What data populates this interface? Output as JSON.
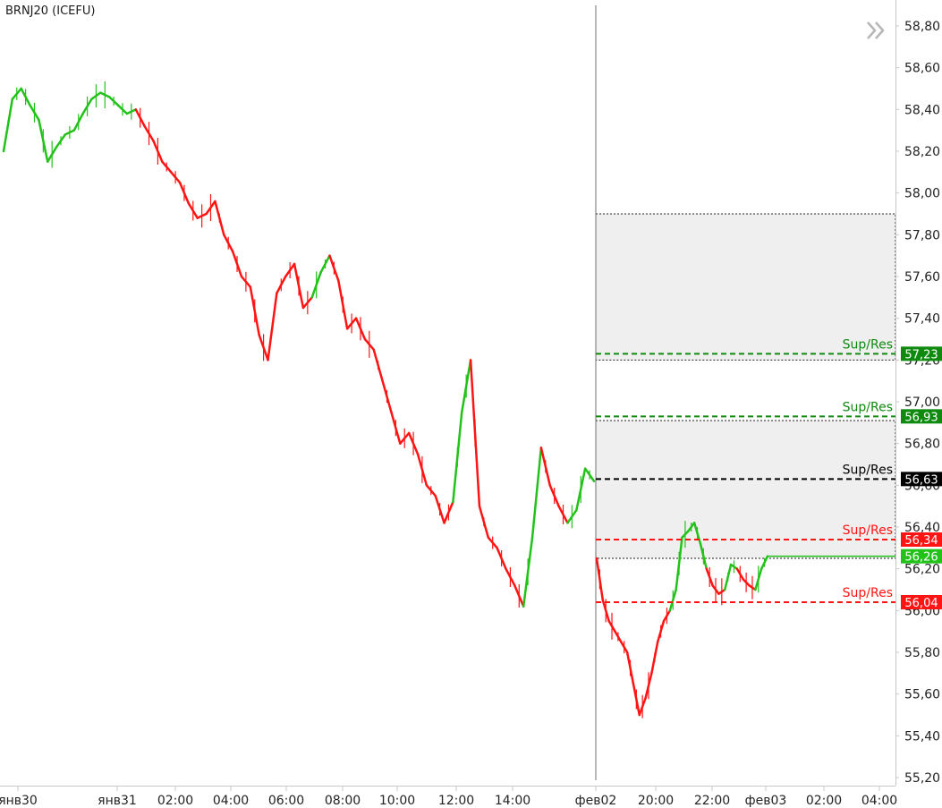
{
  "symbol": "BRNJ20 (ICEFU)",
  "chart_data": {
    "type": "line",
    "title": "BRNJ20 (ICEFU)",
    "xlabel": "",
    "ylabel": "",
    "ylim": [
      55.2,
      58.8
    ],
    "y_ticks": [
      "58,80",
      "58,60",
      "58,40",
      "58,20",
      "58,00",
      "57,80",
      "57,60",
      "57,40",
      "57,20",
      "57,00",
      "56,80",
      "56,60",
      "56,40",
      "56,20",
      "56,00",
      "55,80",
      "55,60",
      "55,40",
      "55,20"
    ],
    "x_ticks": [
      "янв30",
      "янв31",
      "02:00",
      "04:00",
      "06:00",
      "08:00",
      "10:00",
      "12:00",
      "14:00",
      "фев02",
      "20:00",
      "22:00",
      "фев03",
      "02:00",
      "04:00"
    ],
    "series": [
      {
        "values": [
          58.2,
          58.45,
          58.5,
          58.42,
          58.35,
          58.15,
          58.22,
          58.28,
          58.3,
          58.38,
          58.45,
          58.48,
          58.46,
          58.42,
          58.38,
          58.4,
          58.32,
          58.25,
          58.15,
          58.1,
          58.05,
          57.95,
          57.88,
          57.9,
          57.96,
          57.8,
          57.72,
          57.6,
          57.55,
          57.32,
          57.2,
          57.52,
          57.6,
          57.66,
          57.45,
          57.5,
          57.62,
          57.7,
          57.58,
          57.35,
          57.4,
          57.3,
          57.25,
          57.1,
          56.95,
          56.8,
          56.85,
          56.75,
          56.6,
          56.55,
          56.42,
          56.52,
          56.95,
          57.2,
          56.5,
          56.35,
          56.3,
          56.2,
          56.12,
          56.02,
          56.35,
          56.78,
          56.6,
          56.5,
          56.42,
          56.48,
          56.68,
          56.62
        ],
        "colors": [
          "#22c21a",
          "#22c21a",
          "#22c21a",
          "#22c21a",
          "#22c21a",
          "#22c21a",
          "#22c21a",
          "#22c21a",
          "#22c21a",
          "#22c21a",
          "#22c21a",
          "#22c21a",
          "#22c21a",
          "#22c21a",
          "#22c21a",
          "#22c21a",
          "#ff1414",
          "#ff1414",
          "#ff1414",
          "#ff1414",
          "#ff1414",
          "#ff1414",
          "#ff1414",
          "#ff1414",
          "#ff1414",
          "#ff1414",
          "#ff1414",
          "#ff1414",
          "#ff1414",
          "#ff1414",
          "#ff1414",
          "#ff1414",
          "#ff1414",
          "#ff1414",
          "#ff1414",
          "#ff1414",
          "#22c21a",
          "#22c21a",
          "#ff1414",
          "#ff1414",
          "#ff1414",
          "#ff1414",
          "#ff1414",
          "#ff1414",
          "#ff1414",
          "#ff1414",
          "#ff1414",
          "#ff1414",
          "#ff1414",
          "#ff1414",
          "#ff1414",
          "#ff1414",
          "#22c21a",
          "#22c21a",
          "#ff1414",
          "#ff1414",
          "#ff1414",
          "#ff1414",
          "#ff1414",
          "#ff1414",
          "#22c21a",
          "#22c21a",
          "#ff1414",
          "#ff1414",
          "#ff1414",
          "#22c21a",
          "#22c21a",
          "#22c21a"
        ]
      },
      {
        "values": [
          56.25,
          56.05,
          55.95,
          55.9,
          55.85,
          55.8,
          55.65,
          55.5,
          55.58,
          55.7,
          55.85,
          55.95,
          56.0,
          56.1,
          56.35,
          56.38,
          56.42,
          56.32,
          56.2,
          56.12,
          56.08,
          56.1,
          56.22,
          56.2,
          56.15,
          56.12,
          56.1,
          56.2,
          56.26
        ],
        "colors": [
          "#ff1414",
          "#ff1414",
          "#ff1414",
          "#ff1414",
          "#ff1414",
          "#ff1414",
          "#ff1414",
          "#ff1414",
          "#ff1414",
          "#ff1414",
          "#ff1414",
          "#ff1414",
          "#ff1414",
          "#22c21a",
          "#22c21a",
          "#22c21a",
          "#22c21a",
          "#22c21a",
          "#22c21a",
          "#ff1414",
          "#ff1414",
          "#ff1414",
          "#22c21a",
          "#22c21a",
          "#ff1414",
          "#ff1414",
          "#ff1414",
          "#22c21a",
          "#22c21a"
        ]
      }
    ],
    "zones": [
      {
        "from": 57.2,
        "to": 57.9
      },
      {
        "from": 56.25,
        "to": 56.91
      }
    ],
    "levels": [
      {
        "label": "Sup/Res",
        "value": 57.23,
        "value_text": "57,23",
        "color": "#0f8a0f"
      },
      {
        "label": "Sup/Res",
        "value": 56.93,
        "value_text": "56,93",
        "color": "#0f8a0f"
      },
      {
        "label": "Sup/Res",
        "value": 56.63,
        "value_text": "56,63",
        "color": "#000000"
      },
      {
        "label": "Sup/Res",
        "value": 56.34,
        "value_text": "56,34",
        "color": "#ff1414"
      },
      {
        "label": "Sup/Res",
        "value": 56.04,
        "value_text": "56,04",
        "color": "#ff1414"
      }
    ],
    "last_price": {
      "value": 56.26,
      "value_text": "56,26",
      "color": "#22c21a"
    }
  },
  "colors": {
    "up": "#22c21a",
    "down": "#ff1414",
    "axis": "#c8c8c8",
    "zone": "#efefef"
  },
  "icons": {
    "expand": "double-chevron-right-icon"
  }
}
